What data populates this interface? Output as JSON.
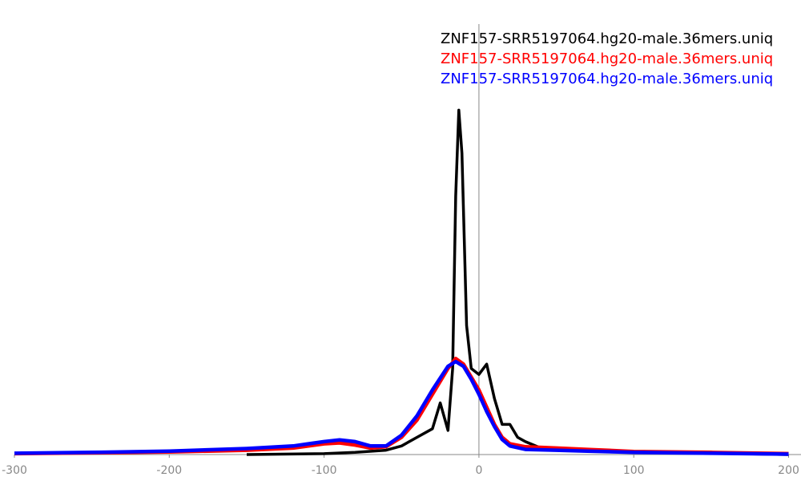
{
  "chart_data": {
    "type": "line",
    "xlim": [
      -300,
      208
    ],
    "ylim": [
      0,
      1
    ],
    "xticks": [
      -300,
      -200,
      -100,
      0,
      100,
      200
    ],
    "series": [
      {
        "name": "ZNF157-SRR5197064.hg20-male.36mers.uniq",
        "color": "#000000",
        "x": [
          -150,
          -100,
          -80,
          -60,
          -50,
          -40,
          -30,
          -25,
          -20,
          -17,
          -15,
          -13,
          -11,
          -8,
          -5,
          0,
          5,
          10,
          15,
          20,
          25,
          30,
          40,
          60,
          100,
          150,
          200
        ],
        "values": [
          0,
          0.002,
          0.005,
          0.01,
          0.02,
          0.04,
          0.06,
          0.12,
          0.056,
          0.2,
          0.6,
          0.8,
          0.7,
          0.3,
          0.2,
          0.186,
          0.21,
          0.13,
          0.07,
          0.07,
          0.04,
          0.03,
          0.015,
          0.012,
          0.005,
          0.003,
          0
        ]
      },
      {
        "name": "ZNF157-SRR5197064.hg20-male.36mers.uniq",
        "color": "#ff0000",
        "x": [
          -300,
          -250,
          -200,
          -150,
          -120,
          -100,
          -90,
          -80,
          -70,
          -60,
          -50,
          -40,
          -30,
          -20,
          -15,
          -10,
          -5,
          0,
          5,
          10,
          15,
          20,
          30,
          50,
          70,
          100,
          150,
          200
        ],
        "values": [
          0.002,
          0.004,
          0.006,
          0.01,
          0.015,
          0.025,
          0.027,
          0.022,
          0.015,
          0.018,
          0.04,
          0.08,
          0.14,
          0.2,
          0.223,
          0.21,
          0.18,
          0.15,
          0.11,
          0.07,
          0.04,
          0.025,
          0.018,
          0.015,
          0.012,
          0.007,
          0.005,
          0.002
        ]
      },
      {
        "name": "ZNF157-SRR5197064.hg20-male.36mers.uniq",
        "color": "#0000ff",
        "x": [
          -300,
          -250,
          -200,
          -150,
          -120,
          -100,
          -90,
          -80,
          -70,
          -60,
          -50,
          -40,
          -30,
          -20,
          -15,
          -10,
          -5,
          0,
          5,
          10,
          15,
          20,
          30,
          50,
          70,
          100,
          150,
          200
        ],
        "values": [
          0.003,
          0.005,
          0.008,
          0.014,
          0.02,
          0.03,
          0.034,
          0.03,
          0.02,
          0.02,
          0.045,
          0.09,
          0.15,
          0.205,
          0.216,
          0.205,
          0.175,
          0.14,
          0.1,
          0.065,
          0.035,
          0.02,
          0.012,
          0.01,
          0.008,
          0.005,
          0.003,
          0.001
        ]
      }
    ]
  }
}
